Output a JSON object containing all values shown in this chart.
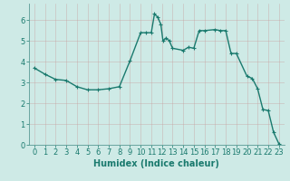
{
  "x": [
    0,
    1,
    2,
    3,
    4,
    5,
    6,
    7,
    8,
    9,
    10,
    10.5,
    11.0,
    11.3,
    11.6,
    11.9,
    12.1,
    12.4,
    12.7,
    13,
    14,
    14.5,
    15,
    15.5,
    16,
    17,
    17.5,
    18,
    18.5,
    19,
    20,
    20.5,
    21,
    21.5,
    22,
    22.5,
    23
  ],
  "y": [
    3.7,
    3.4,
    3.15,
    3.1,
    2.8,
    2.65,
    2.65,
    2.7,
    2.8,
    4.05,
    5.4,
    5.4,
    5.4,
    6.3,
    6.15,
    5.8,
    5.0,
    5.15,
    5.0,
    4.65,
    4.55,
    4.7,
    4.65,
    5.5,
    5.5,
    5.55,
    5.5,
    5.5,
    4.4,
    4.4,
    3.3,
    3.2,
    2.7,
    1.7,
    1.65,
    0.6,
    0.05
  ],
  "line_color": "#1a7a6e",
  "marker_color": "#1a7a6e",
  "bg_color": "#ceeae6",
  "xlabel": "Humidex (Indice chaleur)",
  "ylim": [
    0,
    6.8
  ],
  "xlim": [
    -0.5,
    23.5
  ],
  "yticks": [
    0,
    1,
    2,
    3,
    4,
    5,
    6
  ],
  "xticks": [
    0,
    1,
    2,
    3,
    4,
    5,
    6,
    7,
    8,
    9,
    10,
    11,
    12,
    13,
    14,
    15,
    16,
    17,
    18,
    19,
    20,
    21,
    22,
    23
  ],
  "xlabel_fontsize": 7,
  "tick_fontsize": 6,
  "line_width": 1.0,
  "marker_size": 3.5
}
